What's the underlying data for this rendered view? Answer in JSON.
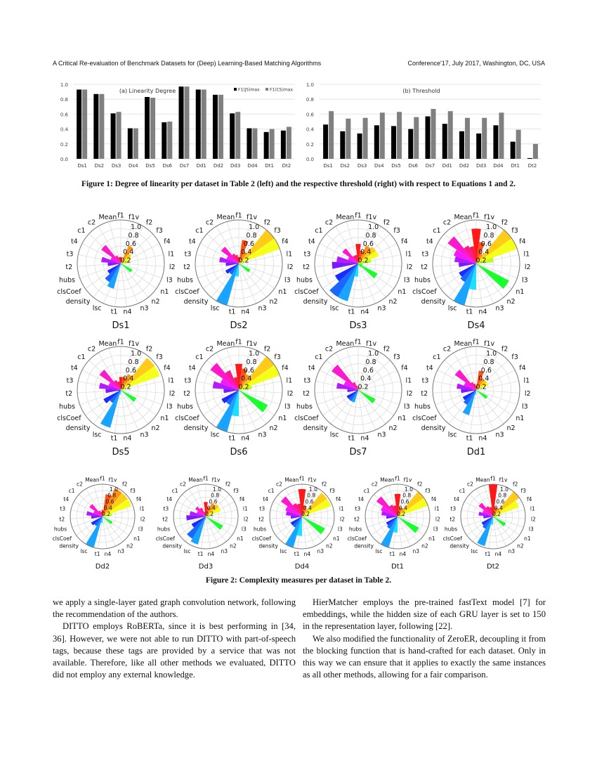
{
  "header": {
    "left": "A Critical Re-evaluation of Benchmark Datasets for (Deep) Learning-Based Matching Algorithms",
    "right": "Conference'17, July 2017, Washington, DC, USA"
  },
  "chart_data": [
    {
      "type": "bar",
      "title": "(a) Linearity Degree",
      "categories": [
        "Ds1",
        "Ds2",
        "Ds3",
        "Ds4",
        "Ds5",
        "Ds6",
        "Ds7",
        "Dd1",
        "Dd2",
        "Dd3",
        "Dd4",
        "Dt1",
        "Dt2"
      ],
      "series": [
        {
          "name": "F1(JS)max",
          "color": "#000000",
          "values": [
            0.93,
            0.87,
            0.61,
            0.41,
            0.83,
            0.49,
            0.97,
            0.93,
            0.86,
            0.61,
            0.41,
            0.36,
            0.38
          ]
        },
        {
          "name": "F1(CS)max",
          "color": "#808080",
          "values": [
            0.93,
            0.87,
            0.63,
            0.41,
            0.82,
            0.5,
            0.97,
            0.93,
            0.86,
            0.63,
            0.41,
            0.4,
            0.43
          ]
        }
      ],
      "ylim": [
        0,
        1
      ],
      "yticks": [
        "0.0",
        "0.2",
        "0.4",
        "0.6",
        "0.8",
        "1.0"
      ],
      "grid": true,
      "legend": "top-right"
    },
    {
      "type": "bar",
      "title": "(b) Threshold",
      "categories": [
        "Ds1",
        "Ds2",
        "Ds3",
        "Ds4",
        "Ds5",
        "Ds6",
        "Ds7",
        "Dd1",
        "Dd2",
        "Dd3",
        "Dd4",
        "Dt1",
        "Dt2"
      ],
      "series": [
        {
          "color": "#000000",
          "values": [
            0.46,
            0.37,
            0.34,
            0.45,
            0.44,
            0.4,
            0.57,
            0.47,
            0.37,
            0.34,
            0.45,
            0.23,
            0.01
          ]
        },
        {
          "color": "#808080",
          "values": [
            0.64,
            0.54,
            0.55,
            0.62,
            0.63,
            0.56,
            0.67,
            0.64,
            0.55,
            0.55,
            0.62,
            0.39,
            0.2
          ]
        }
      ],
      "ylim": [
        0,
        1
      ],
      "yticks": [
        "0.0",
        "0.2",
        "0.4",
        "0.6",
        "0.8",
        "1.0"
      ],
      "grid": true
    },
    {
      "type": "polar-bar",
      "axes": [
        "f1",
        "f1v",
        "f2",
        "f3",
        "f4",
        "l1",
        "l2",
        "l3",
        "n1",
        "n2",
        "n3",
        "n4",
        "t1",
        "lsc",
        "density",
        "clsCoef",
        "hubs",
        "t2",
        "t3",
        "t4",
        "c1",
        "c2",
        "Mean"
      ],
      "rticks": [
        "0.2",
        "0.4",
        "0.6",
        "0.8",
        "1.0"
      ],
      "rlim": [
        0,
        1
      ],
      "charts": [
        {
          "title": "Ds1",
          "values": [
            0.15,
            0.1,
            0.45,
            0.3,
            0.25,
            0.2,
            0.05,
            0.02,
            0.3,
            0.05,
            0.02,
            0.02,
            0.05,
            0.6,
            0.5,
            0.35,
            0.05,
            0.3,
            0.45,
            0.25,
            0.55,
            0.2,
            0.15
          ]
        },
        {
          "title": "Ds2",
          "values": [
            0.15,
            0.55,
            0.3,
            1.0,
            1.0,
            0.1,
            0.02,
            0.02,
            0.3,
            0.05,
            0.02,
            0.02,
            0.3,
            1.0,
            0.3,
            0.35,
            0.05,
            0.3,
            0.45,
            0.3,
            0.5,
            0.25,
            0.2
          ]
        },
        {
          "title": "Ds3",
          "values": [
            0.45,
            0.3,
            0.45,
            0.5,
            0.5,
            0.3,
            0.1,
            0.1,
            0.5,
            0.1,
            0.05,
            0.05,
            0.3,
            0.9,
            0.9,
            0.6,
            0.05,
            0.6,
            0.5,
            0.25,
            0.45,
            0.2,
            0.2
          ]
        },
        {
          "title": "Ds4",
          "values": [
            0.8,
            0.5,
            0.25,
            1.0,
            1.0,
            0.4,
            0.05,
            0.02,
            0.85,
            0.05,
            0.02,
            0.02,
            0.6,
            1.0,
            0.5,
            0.45,
            0.05,
            0.4,
            0.5,
            0.55,
            0.8,
            0.45,
            0.4
          ]
        },
        {
          "title": "Ds5",
          "values": [
            0.3,
            0.3,
            0.4,
            0.95,
            0.95,
            0.1,
            0.02,
            0.02,
            0.4,
            0.05,
            0.02,
            0.02,
            0.1,
            0.9,
            0.35,
            0.45,
            0.05,
            0.35,
            0.5,
            0.3,
            0.6,
            0.25,
            0.2
          ]
        },
        {
          "title": "Ds6",
          "values": [
            0.6,
            0.5,
            0.4,
            1.0,
            1.0,
            0.3,
            0.02,
            0.02,
            0.75,
            0.05,
            0.02,
            0.02,
            0.6,
            1.0,
            0.4,
            0.45,
            0.05,
            0.35,
            0.6,
            0.45,
            0.8,
            0.5,
            0.3
          ]
        },
        {
          "title": "Ds7",
          "values": [
            0.05,
            0.05,
            0.05,
            0.05,
            0.05,
            0.02,
            0.02,
            0.02,
            0.45,
            0.02,
            0.02,
            0.02,
            0.05,
            0.3,
            0.3,
            0.3,
            0.05,
            0.25,
            0.5,
            0.35,
            0.75,
            0.2,
            0.1
          ]
        },
        {
          "title": "Dd1",
          "values": [
            0.1,
            0.45,
            0.3,
            0.3,
            0.3,
            0.05,
            0.02,
            0.02,
            0.3,
            0.02,
            0.02,
            0.02,
            0.1,
            0.6,
            0.4,
            0.35,
            0.05,
            0.35,
            0.45,
            0.3,
            0.6,
            0.2,
            0.15
          ]
        },
        {
          "title": "Dd2",
          "values": [
            0.2,
            0.7,
            0.95,
            0.95,
            0.95,
            0.3,
            0.02,
            0.02,
            0.35,
            0.05,
            0.02,
            0.02,
            0.2,
            1.0,
            0.35,
            0.4,
            0.05,
            0.35,
            0.5,
            0.3,
            0.5,
            0.2,
            0.15
          ]
        },
        {
          "title": "Dd3",
          "values": [
            0.45,
            0.3,
            0.45,
            0.5,
            0.5,
            0.1,
            0.1,
            0.05,
            0.6,
            0.05,
            0.02,
            0.02,
            0.1,
            0.9,
            0.8,
            0.5,
            0.05,
            0.6,
            0.5,
            0.3,
            0.4,
            0.3,
            0.15
          ]
        },
        {
          "title": "Dd4",
          "values": [
            0.85,
            0.35,
            0.25,
            0.95,
            0.95,
            0.2,
            0.02,
            0.02,
            0.8,
            0.05,
            0.02,
            0.02,
            0.6,
            1.0,
            0.4,
            0.4,
            0.05,
            0.35,
            0.5,
            0.55,
            0.8,
            0.45,
            0.4
          ]
        },
        {
          "title": "Dt1",
          "values": [
            0.7,
            0.3,
            0.3,
            1.0,
            1.0,
            0.2,
            0.02,
            0.02,
            0.75,
            0.05,
            0.02,
            0.02,
            0.5,
            1.0,
            0.45,
            0.4,
            0.05,
            0.35,
            0.5,
            0.55,
            0.8,
            0.4,
            0.35
          ]
        },
        {
          "title": "Dt2",
          "values": [
            1.0,
            0.3,
            0.3,
            1.0,
            0.85,
            0.2,
            0.1,
            0.05,
            0.45,
            0.05,
            0.02,
            0.02,
            0.25,
            0.95,
            0.45,
            0.4,
            0.05,
            0.3,
            0.45,
            0.35,
            0.55,
            0.35,
            0.3
          ]
        }
      ]
    }
  ],
  "captions": {
    "fig1": "Figure 1: Degree of linearity per dataset in Table 2 (left) and the respective threshold (right) with respect to Equations 1 and 2.",
    "fig2": "Figure 2: Complexity measures per dataset in Table 2."
  },
  "body": {
    "left": [
      "we apply a single-layer gated graph convolution network, following the recommendation of the authors.",
      "DITTO employs RoBERTa, since it is best performing in [34, 36]. However, we were not able to run DITTO with part-of-speech tags, because these tags are provided by a service that was not available. Therefore, like all other methods we evaluated, DITTO did not employ any external knowledge."
    ],
    "right": [
      "HierMatcher employs the pre-trained fastText model [7] for embeddings, while the hidden size of each GRU layer is set to 150 in the representation layer, following [22].",
      "We also modified the functionality of ZeroER, decoupling it from the blocking function that is hand-crafted for each dataset. Only in this way we can ensure that it applies to exactly the same instances as all other methods, allowing for a fair comparison."
    ]
  }
}
